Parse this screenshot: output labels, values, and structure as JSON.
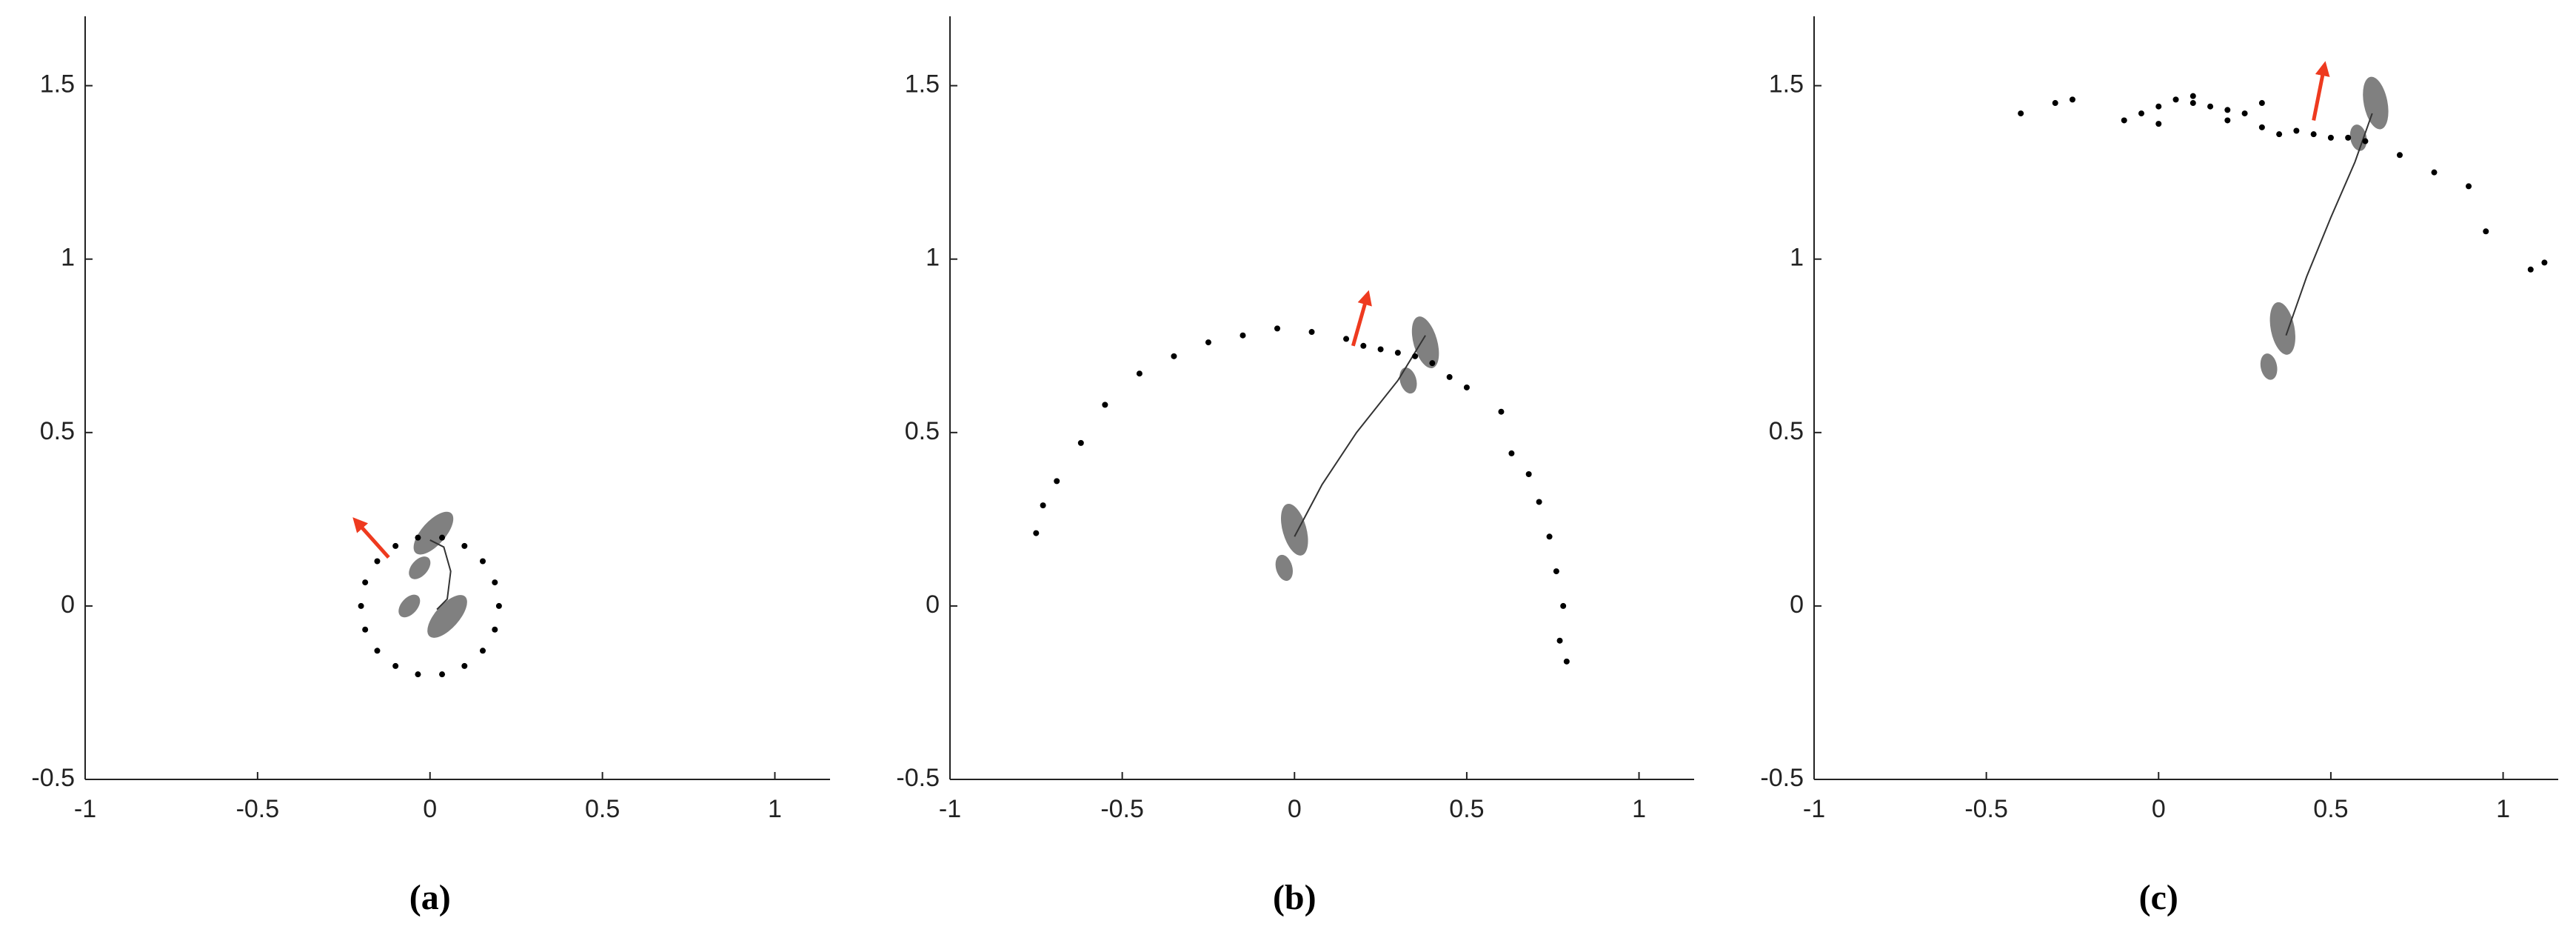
{
  "chart_data": [
    {
      "type": "scatter",
      "label": "(a)",
      "color": "#000000",
      "x": [
        0.2,
        0.188,
        0.153,
        0.1,
        0.035,
        -0.035,
        -0.1,
        -0.153,
        -0.188,
        -0.2,
        -0.188,
        -0.153,
        -0.1,
        -0.035,
        0.035,
        0.1,
        0.153,
        0.188
      ],
      "y": [
        0,
        0.068,
        0.129,
        0.173,
        0.197,
        0.197,
        0.173,
        0.129,
        0.068,
        0,
        -0.068,
        -0.129,
        -0.173,
        -0.197,
        -0.197,
        -0.173,
        -0.129,
        -0.068
      ],
      "line": {
        "x": [
          0.0,
          0.04,
          0.06,
          0.05,
          0.02
        ],
        "y": [
          0.19,
          0.17,
          0.1,
          0.02,
          -0.01
        ],
        "color": "#333333"
      },
      "arrow": {
        "x": -0.12,
        "y": 0.14,
        "u": -0.09,
        "v": 0.1,
        "color": "#ee3a1f"
      },
      "footprints": {
        "x": [
          0.01,
          -0.03,
          0.05,
          -0.06
        ],
        "y": [
          0.21,
          0.11,
          -0.03,
          0.0
        ],
        "color": "#808080"
      },
      "xlim": [
        -1,
        1.16
      ],
      "ylim": [
        -0.5,
        1.7
      ],
      "xticks": [
        -1,
        -0.5,
        0,
        0.5,
        1
      ],
      "yticks": [
        -0.5,
        0,
        0.5,
        1,
        1.5
      ]
    },
    {
      "type": "scatter",
      "label": "(b)",
      "color": "#000000",
      "x": [
        -0.75,
        -0.73,
        -0.69,
        -0.62,
        -0.55,
        -0.45,
        -0.35,
        -0.25,
        -0.15,
        -0.05,
        0.05,
        0.15,
        0.2,
        0.25,
        0.3,
        0.35,
        0.4,
        0.45,
        0.5,
        0.6,
        0.63,
        0.68,
        0.71,
        0.74,
        0.76,
        0.78,
        0.77,
        0.79
      ],
      "y": [
        0.21,
        0.29,
        0.36,
        0.47,
        0.58,
        0.67,
        0.72,
        0.76,
        0.78,
        0.8,
        0.79,
        0.77,
        0.75,
        0.74,
        0.73,
        0.72,
        0.7,
        0.66,
        0.63,
        0.56,
        0.44,
        0.38,
        0.3,
        0.2,
        0.1,
        0.0,
        -0.1,
        -0.16
      ],
      "line": {
        "x": [
          0.0,
          0.08,
          0.18,
          0.3,
          0.38
        ],
        "y": [
          0.2,
          0.35,
          0.5,
          0.65,
          0.78
        ],
        "color": "#333333"
      },
      "arrow": {
        "x": 0.17,
        "y": 0.75,
        "u": 0.04,
        "v": 0.14,
        "color": "#ee3a1f"
      },
      "footprints": {
        "x": [
          0.38,
          0.33,
          0.0,
          -0.03
        ],
        "y": [
          0.76,
          0.65,
          0.22,
          0.11
        ],
        "color": "#808080"
      },
      "xlim": [
        -1,
        1.16
      ],
      "ylim": [
        -0.5,
        1.7
      ],
      "xticks": [
        -1,
        -0.5,
        0,
        0.5,
        1
      ],
      "yticks": [
        -0.5,
        0,
        0.5,
        1,
        1.5
      ]
    },
    {
      "type": "scatter",
      "label": "(c)",
      "color": "#000000",
      "x": [
        -0.4,
        -0.3,
        -0.25,
        -0.1,
        -0.05,
        0.0,
        0.05,
        0.1,
        0.15,
        0.2,
        0.25,
        0.3,
        0.35,
        0.4,
        0.45,
        0.5,
        0.55,
        0.6,
        0.7,
        0.8,
        0.9,
        0.95,
        1.08,
        1.12,
        0.0,
        0.1,
        0.2,
        0.3
      ],
      "y": [
        1.42,
        1.45,
        1.46,
        1.4,
        1.42,
        1.44,
        1.46,
        1.45,
        1.44,
        1.43,
        1.42,
        1.38,
        1.36,
        1.37,
        1.36,
        1.35,
        1.35,
        1.34,
        1.3,
        1.25,
        1.21,
        1.08,
        0.97,
        0.99,
        1.39,
        1.47,
        1.4,
        1.45
      ],
      "line": {
        "x": [
          0.37,
          0.43,
          0.5,
          0.57,
          0.62
        ],
        "y": [
          0.78,
          0.95,
          1.12,
          1.28,
          1.42
        ],
        "color": "#333333"
      },
      "arrow": {
        "x": 0.45,
        "y": 1.4,
        "u": 0.03,
        "v": 0.15,
        "color": "#ee3a1f"
      },
      "footprints": {
        "x": [
          0.63,
          0.58,
          0.36,
          0.32
        ],
        "y": [
          1.45,
          1.35,
          0.8,
          0.69
        ],
        "color": "#808080"
      },
      "xlim": [
        -1,
        1.16
      ],
      "ylim": [
        -0.5,
        1.7
      ],
      "xticks": [
        -1,
        -0.5,
        0,
        0.5,
        1
      ],
      "yticks": [
        -0.5,
        0,
        0.5,
        1,
        1.5
      ]
    }
  ]
}
